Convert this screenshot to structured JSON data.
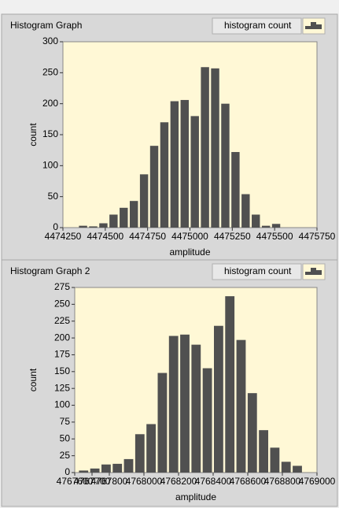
{
  "chart_data": [
    {
      "type": "histogram",
      "title": "Histogram Graph",
      "legend": "histogram count",
      "xlabel": "amplitude",
      "ylabel": "count",
      "bins": [
        4474340,
        4474400,
        4474460,
        4474520,
        4474580,
        4474640,
        4474700,
        4474760,
        4474820,
        4474880,
        4474940,
        4475000,
        4475060,
        4475120,
        4475180,
        4475240,
        4475300,
        4475360,
        4475420,
        4475480,
        4475540
      ],
      "values": [
        3,
        2,
        7,
        21,
        32,
        43,
        86,
        132,
        170,
        204,
        206,
        180,
        259,
        257,
        200,
        122,
        54,
        21,
        3,
        6
      ],
      "color": "#505050",
      "background": "#fff8d6",
      "xlim": [
        4474250,
        4475750
      ],
      "xticks": [
        4474250,
        4474500,
        4474750,
        4475000,
        4475250,
        4475500,
        4475750
      ],
      "ylim": [
        0,
        300
      ],
      "yticks": [
        0,
        50,
        100,
        150,
        200,
        250,
        300
      ]
    },
    {
      "type": "histogram",
      "title": "Histogram Graph 2",
      "legend": "histogram count",
      "xlabel": "amplitude",
      "ylabel": "count",
      "bins": [
        4767620,
        4767685,
        4767750,
        4767815,
        4767880,
        4767945,
        4768010,
        4768075,
        4768140,
        4768205,
        4768270,
        4768335,
        4768400,
        4768465,
        4768530,
        4768595,
        4768660,
        4768725,
        4768790,
        4768855,
        4768920
      ],
      "values": [
        3,
        6,
        12,
        13,
        20,
        57,
        72,
        148,
        203,
        205,
        190,
        155,
        218,
        262,
        197,
        118,
        63,
        37,
        16,
        10
      ],
      "color": "#505050",
      "background": "#fff8d6",
      "xlim": [
        4767600,
        4769000
      ],
      "xticks": [
        4767600,
        4767700,
        4767800,
        4768000,
        4768200,
        4768400,
        4768600,
        4768800,
        4769000
      ],
      "ylim": [
        0,
        275
      ],
      "yticks": [
        0,
        25,
        50,
        75,
        100,
        125,
        150,
        175,
        200,
        225,
        250,
        275
      ]
    }
  ]
}
